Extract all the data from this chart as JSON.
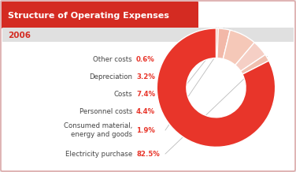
{
  "title": "Structure of Operating Expenses",
  "year": "2006",
  "labels": [
    "Other costs",
    "Depreciation",
    "Costs",
    "Personnel costs",
    "Consumed material,\nenergy and goods",
    "Electricity purchase"
  ],
  "values": [
    0.6,
    3.2,
    7.4,
    4.4,
    1.9,
    82.5
  ],
  "pct_labels": [
    "0.6%",
    "3.2%",
    "7.4%",
    "4.4%",
    "1.9%",
    "82.5%"
  ],
  "colors": [
    "#f0a898",
    "#f2b8a8",
    "#f5c8b8",
    "#f5cfc5",
    "#f0c0b0",
    "#e8352a"
  ],
  "title_bg": "#d42b22",
  "title_color": "#ffffff",
  "year_color": "#d42b22",
  "label_color": "#444444",
  "pct_color": "#e8352a",
  "outer_bg": "#e8e8e8",
  "card_bg": "#ffffff",
  "year_band_bg": "#e0e0e0",
  "border_color": "#ddaaaa",
  "line_color": "#bbbbbb"
}
